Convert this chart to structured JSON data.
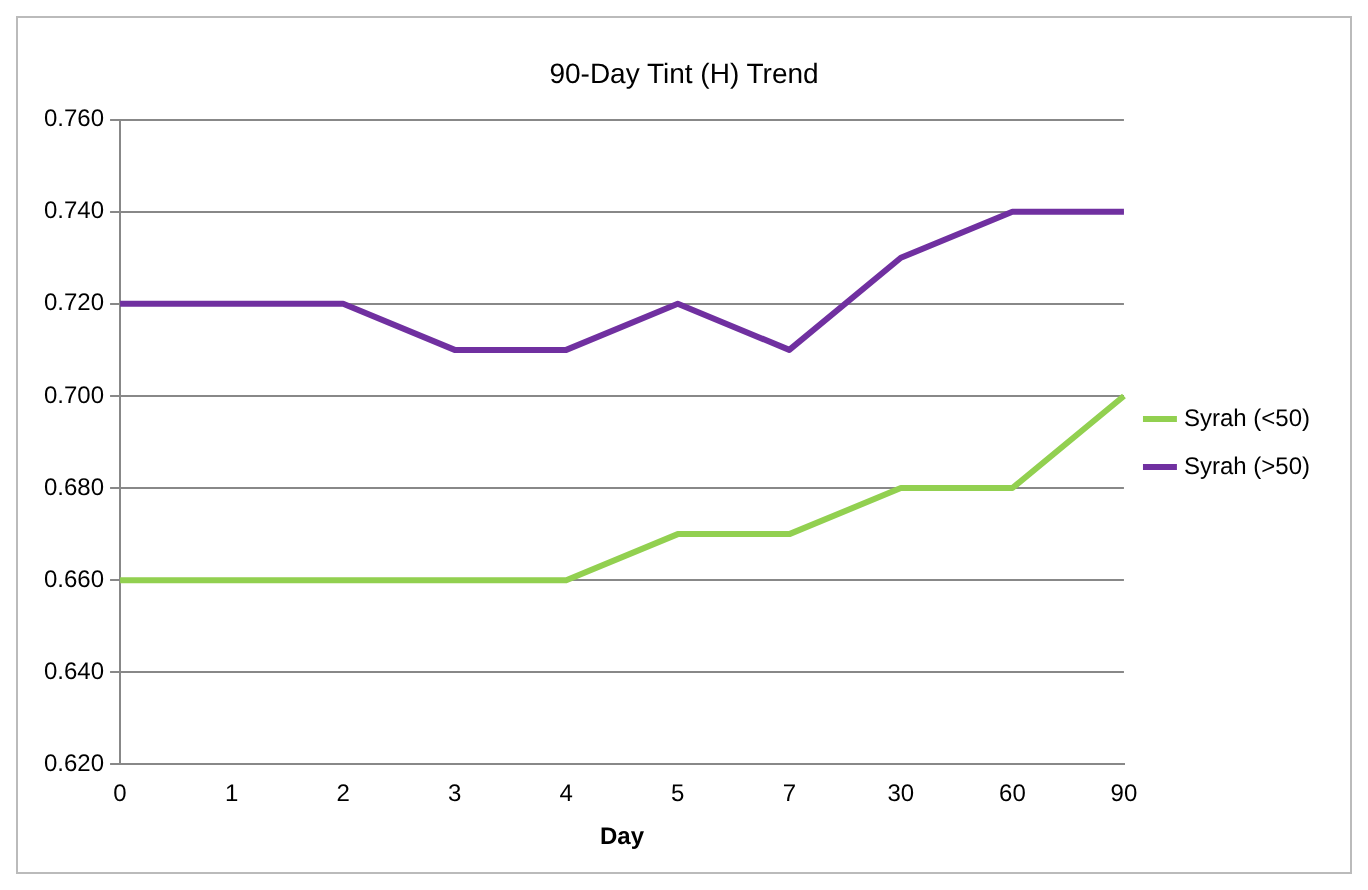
{
  "chart_data": {
    "type": "line",
    "title": "90-Day Tint (H) Trend",
    "xlabel": "Day",
    "categories": [
      "0",
      "1",
      "2",
      "3",
      "4",
      "5",
      "7",
      "30",
      "60",
      "90"
    ],
    "series": [
      {
        "name": "Syrah (<50)",
        "color": "#92d050",
        "values": [
          0.66,
          0.66,
          0.66,
          0.66,
          0.66,
          0.67,
          0.67,
          0.68,
          0.68,
          0.7
        ]
      },
      {
        "name": "Syrah (>50)",
        "color": "#7030a0",
        "values": [
          0.72,
          0.72,
          0.72,
          0.71,
          0.71,
          0.72,
          0.71,
          0.73,
          0.74,
          0.74
        ]
      }
    ],
    "ylim": [
      0.62,
      0.76
    ],
    "yticks": [
      {
        "value": 0.62,
        "label": "0.620"
      },
      {
        "value": 0.64,
        "label": "0.640"
      },
      {
        "value": 0.66,
        "label": "0.660"
      },
      {
        "value": 0.68,
        "label": "0.680"
      },
      {
        "value": 0.7,
        "label": "0.700"
      },
      {
        "value": 0.72,
        "label": "0.720"
      },
      {
        "value": 0.74,
        "label": "0.740"
      },
      {
        "value": 0.76,
        "label": "0.760"
      }
    ],
    "grid": "y",
    "legend": "right",
    "marker": "none",
    "line_style": "solid"
  }
}
